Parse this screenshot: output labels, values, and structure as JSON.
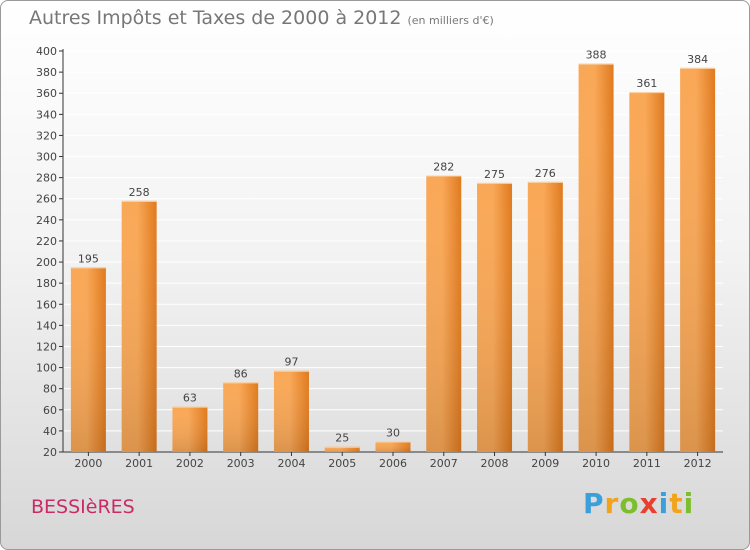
{
  "title": "Autres Impôts et Taxes de 2000 à 2012",
  "subtitle": "(en milliers d'€)",
  "location": "BESSIèRES",
  "logo": {
    "letters": [
      "P",
      "r",
      "o",
      "x",
      "i",
      "t",
      "i"
    ],
    "colors": [
      "#3aa0dc",
      "#f2a31b",
      "#7cbf2a",
      "#e8402f",
      "#3aa0dc",
      "#f2a31b",
      "#7cbf2a"
    ]
  },
  "colors": {
    "bar_light": "#f9a857",
    "bar_dark": "#e07a1e",
    "grid": "#ffffff",
    "text": "#444444"
  },
  "chart_data": {
    "type": "bar",
    "title": "Autres Impôts et Taxes de 2000 à 2012",
    "categories": [
      "2000",
      "2001",
      "2002",
      "2003",
      "2004",
      "2005",
      "2006",
      "2007",
      "2008",
      "2009",
      "2010",
      "2011",
      "2012"
    ],
    "values": [
      195,
      258,
      63,
      86,
      97,
      25,
      30,
      282,
      275,
      276,
      388,
      361,
      384
    ],
    "ylim": [
      20,
      400
    ],
    "yticks": [
      20,
      40,
      60,
      80,
      100,
      120,
      140,
      160,
      180,
      200,
      220,
      240,
      260,
      280,
      300,
      320,
      340,
      360,
      380,
      400
    ],
    "grid": true,
    "xlabel": "",
    "ylabel": ""
  }
}
